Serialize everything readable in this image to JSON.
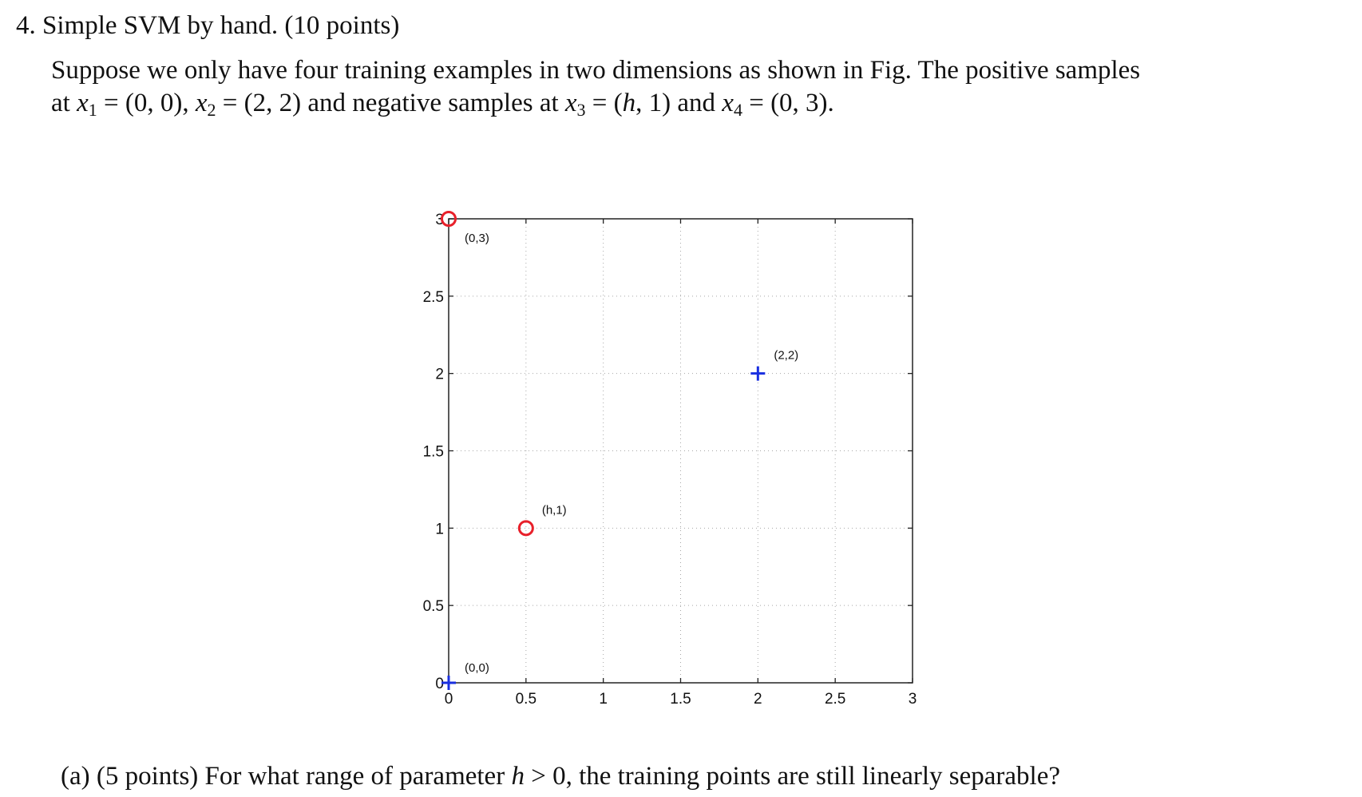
{
  "problem": {
    "heading": "4. Simple SVM by hand. (10 points)",
    "line1": "Suppose we only have four training examples in two dimensions as shown in Fig. The positive samples",
    "line2_parts": {
      "at": "at ",
      "x1_var": "x",
      "x1_sub": "1",
      "x1_val": " = (0, 0), ",
      "x2_var": "x",
      "x2_sub": "2",
      "x2_val": " = (2, 2) and negative samples at ",
      "x3_var": "x",
      "x3_sub": "3",
      "x3_eq": " = (",
      "x3_h": "h",
      "x3_rest": ", 1) and ",
      "x4_var": "x",
      "x4_sub": "4",
      "x4_val": " = (0, 3)."
    }
  },
  "question_a": {
    "prefix": "(a)  (5 points) For what range of parameter ",
    "h": "h",
    "suffix": " > 0, the training points are still linearly separable?"
  },
  "chart_data": {
    "type": "scatter",
    "xlim": [
      0,
      3
    ],
    "ylim": [
      0,
      3
    ],
    "x_ticks": [
      "0",
      "0.5",
      "1",
      "1.5",
      "2",
      "2.5",
      "3"
    ],
    "y_ticks": [
      "0",
      "0.5",
      "1",
      "1.5",
      "2",
      "2.5",
      "3"
    ],
    "grid": true,
    "grid_style": "dotted",
    "colors": {
      "positive": "#1a2fe0",
      "negative": "#e8202a"
    },
    "series": [
      {
        "marker": "plus",
        "color": "#1a2fe0",
        "points": [
          {
            "x": 0,
            "y": 0,
            "label": "(0,0)"
          },
          {
            "x": 2,
            "y": 2,
            "label": "(2,2)"
          }
        ]
      },
      {
        "marker": "circle",
        "color": "#e8202a",
        "points": [
          {
            "x": 0.5,
            "y": 1,
            "label": "(h,1)"
          },
          {
            "x": 0,
            "y": 3,
            "label": "(0,3)"
          }
        ]
      }
    ]
  }
}
